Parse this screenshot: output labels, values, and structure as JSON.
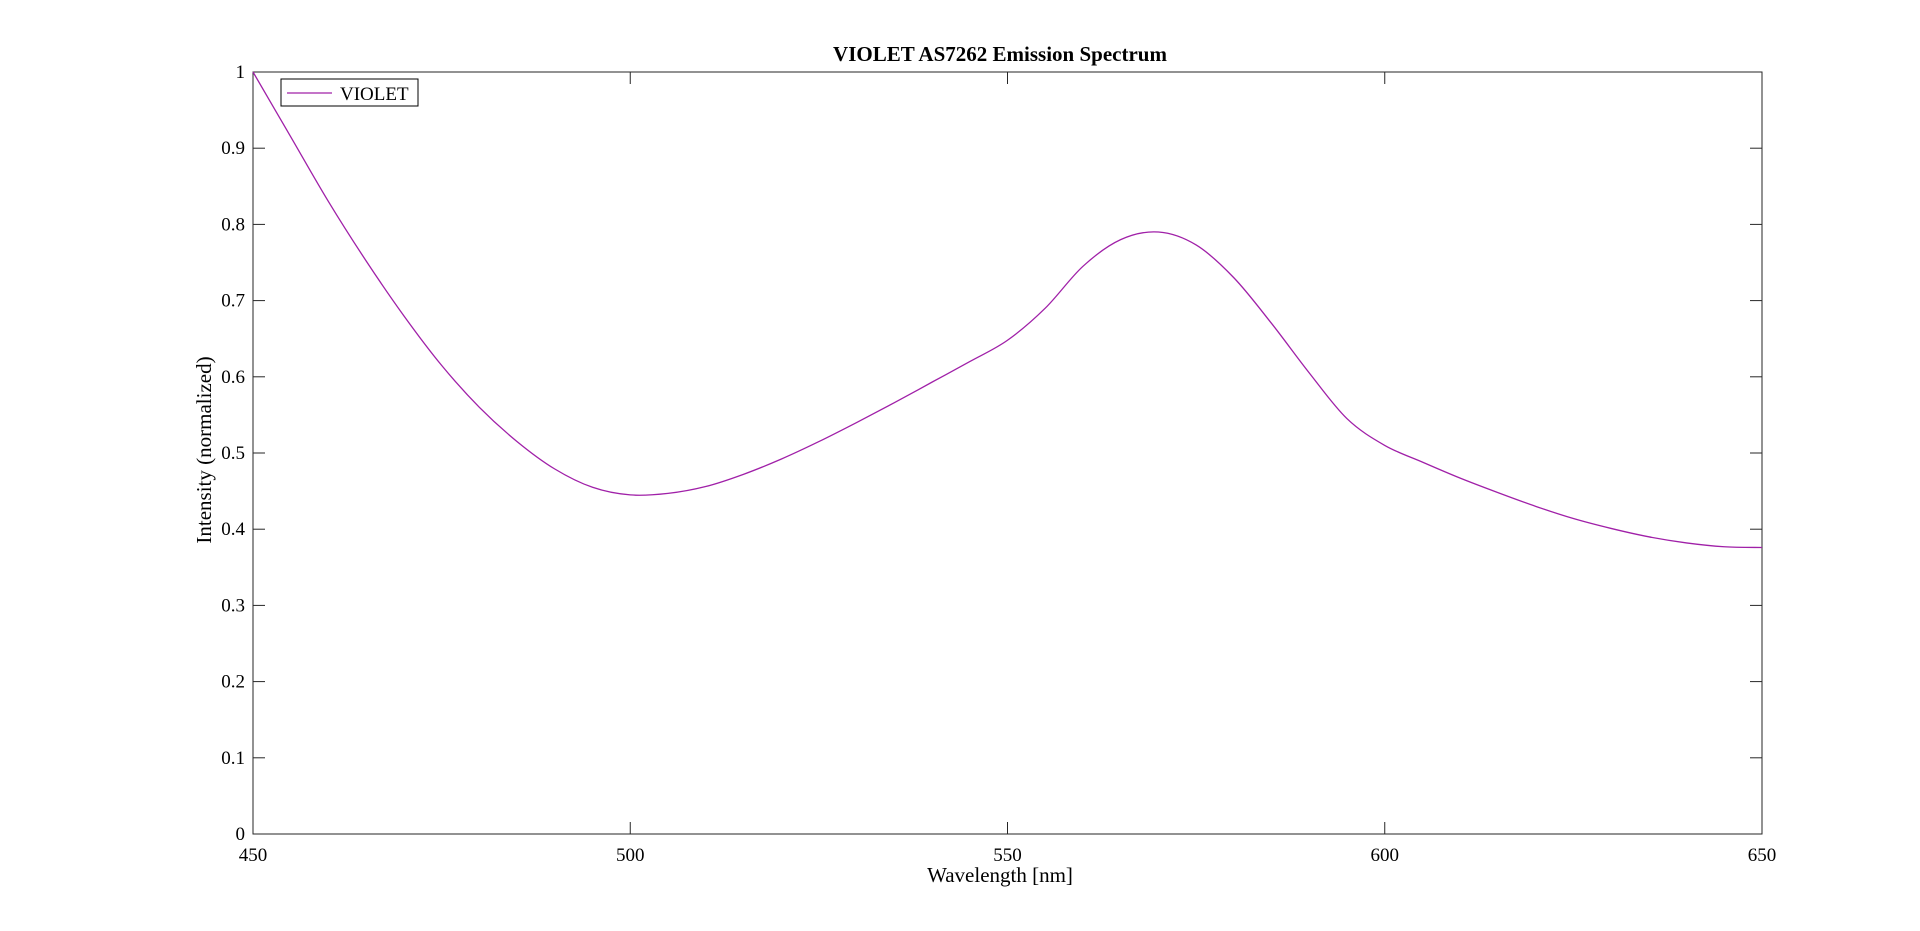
{
  "chart_data": {
    "type": "line",
    "title": "VIOLET AS7262 Emission Spectrum",
    "xlabel": "Wavelength [nm]",
    "ylabel": "Intensity (normalized)",
    "xlim": [
      450,
      650
    ],
    "ylim": [
      0,
      1
    ],
    "xticks": [
      450,
      500,
      550,
      600,
      650
    ],
    "yticks": [
      0,
      0.1,
      0.2,
      0.3,
      0.4,
      0.5,
      0.6,
      0.7,
      0.8,
      0.9,
      1
    ],
    "ytick_labels": [
      "0",
      "0.1",
      "0.2",
      "0.3",
      "0.4",
      "0.5",
      "0.6",
      "0.7",
      "0.8",
      "0.9",
      "1"
    ],
    "xtick_labels": [
      "450",
      "500",
      "550",
      "600",
      "650"
    ],
    "grid": false,
    "box": true,
    "legend": {
      "placement": "top-left"
    },
    "series": [
      {
        "name": "VIOLET",
        "color": "#a020a8",
        "x": [
          450,
          455,
          460,
          465,
          470,
          475,
          480,
          485,
          490,
          495,
          500,
          505,
          510,
          515,
          520,
          525,
          530,
          535,
          540,
          545,
          550,
          555,
          560,
          565,
          570,
          575,
          580,
          585,
          590,
          595,
          600,
          605,
          610,
          615,
          620,
          625,
          630,
          635,
          640,
          645,
          650
        ],
        "y": [
          1.0,
          0.915,
          0.83,
          0.752,
          0.68,
          0.615,
          0.56,
          0.515,
          0.479,
          0.455,
          0.445,
          0.447,
          0.456,
          0.472,
          0.492,
          0.515,
          0.54,
          0.566,
          0.593,
          0.62,
          0.648,
          0.69,
          0.745,
          0.78,
          0.79,
          0.773,
          0.73,
          0.67,
          0.605,
          0.545,
          0.51,
          0.488,
          0.467,
          0.448,
          0.43,
          0.414,
          0.401,
          0.39,
          0.382,
          0.377,
          0.376
        ]
      }
    ]
  }
}
